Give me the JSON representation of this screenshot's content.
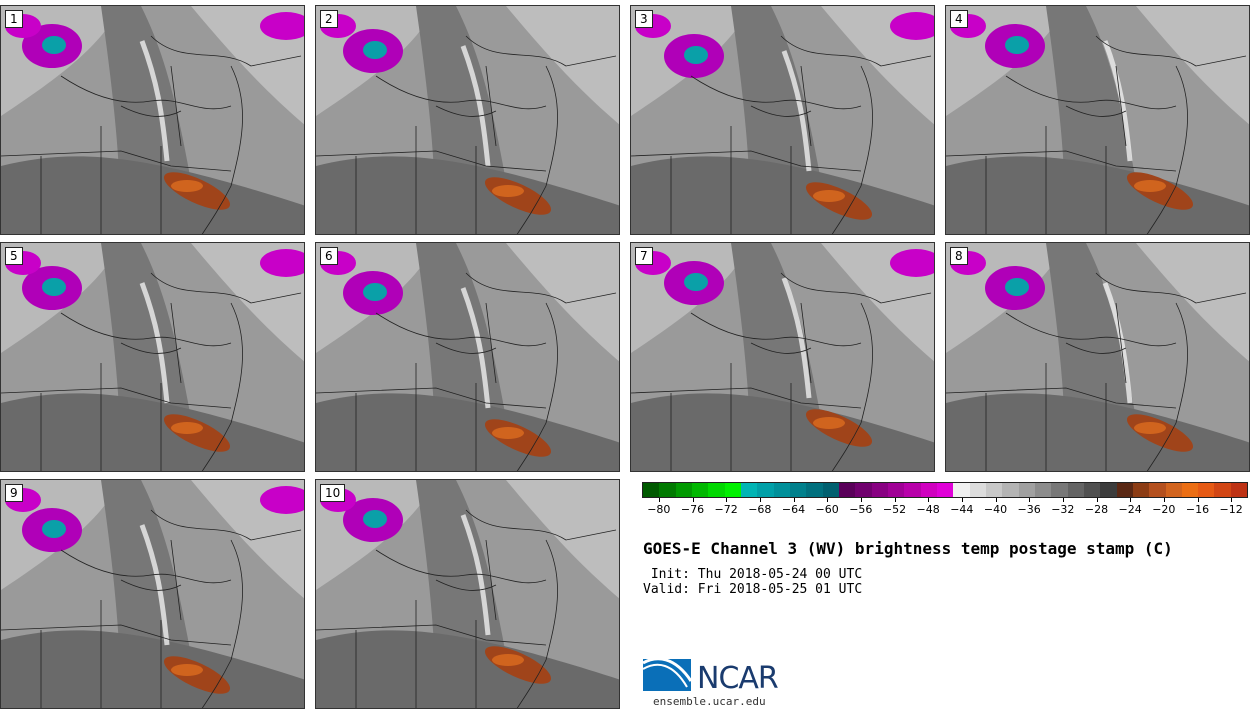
{
  "panels": [
    {
      "label": "1",
      "variant": 0
    },
    {
      "label": "2",
      "variant": 1
    },
    {
      "label": "3",
      "variant": 2
    },
    {
      "label": "4",
      "variant": 3
    },
    {
      "label": "5",
      "variant": 4
    },
    {
      "label": "6",
      "variant": 5
    },
    {
      "label": "7",
      "variant": 6
    },
    {
      "label": "8",
      "variant": 7
    },
    {
      "label": "9",
      "variant": 8
    },
    {
      "label": "10",
      "variant": 9
    }
  ],
  "colorbar": {
    "colors": [
      "#005a00",
      "#007a00",
      "#009900",
      "#00b800",
      "#00d800",
      "#00f000",
      "#00b4b4",
      "#00a0a8",
      "#00909a",
      "#00808c",
      "#00707e",
      "#006070",
      "#5a005a",
      "#70006e",
      "#880082",
      "#a00096",
      "#b800aa",
      "#d000c0",
      "#e000d8",
      "#f0f0f0",
      "#dcdcdc",
      "#c8c8c8",
      "#b4b4b4",
      "#a0a0a0",
      "#8c8c8c",
      "#787878",
      "#646464",
      "#505050",
      "#3c3c3c",
      "#5a2814",
      "#8c3c14",
      "#b4501e",
      "#d2641e",
      "#eb6e14",
      "#e65a14",
      "#d24614",
      "#be3214"
    ],
    "tick_labels": [
      "−80",
      "−76",
      "−72",
      "−68",
      "−64",
      "−60",
      "−56",
      "−52",
      "−48",
      "−44",
      "−40",
      "−36",
      "−32",
      "−28",
      "−24",
      "−20",
      "−16",
      "−12"
    ],
    "min": -82,
    "max": -10
  },
  "title": "GOES-E Channel 3 (WV) brightness temp postage stamp (C)",
  "init": " Init: Thu 2018-05-24 00 UTC",
  "valid": "Valid: Fri 2018-05-25 01 UTC",
  "logo_text": "NCAR",
  "url": "ensemble.ucar.edu"
}
